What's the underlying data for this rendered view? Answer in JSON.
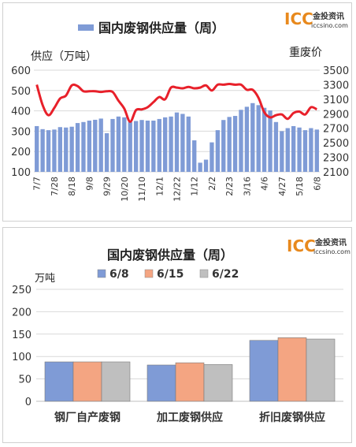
{
  "chart_data": [
    {
      "type": "bar+line",
      "title": "国内废钢供应量（周）",
      "legend": [
        "国内废钢供应量（周）"
      ],
      "ylabel_left": "供应（万吨）",
      "ylabel_right": "重废价",
      "ylim_left": [
        100,
        600
      ],
      "ylim_right": [
        2100,
        3500
      ],
      "yticks_left": [
        "100",
        "200",
        "300",
        "400",
        "500",
        "600"
      ],
      "yticks_right": [
        "2100",
        "2300",
        "2500",
        "2700",
        "2900",
        "3100",
        "3300",
        "3500"
      ],
      "xtick_labels": [
        "7/7",
        "7/28",
        "8/18",
        "9/8",
        "9/29",
        "10/20",
        "11/10",
        "12/1",
        "12/22",
        "1/12",
        "2/2",
        "2/23",
        "3/16",
        "4/6",
        "4/27",
        "5/18",
        "6/8"
      ],
      "bar_color": "#7f9bd6",
      "line_color": "#e8202a",
      "supply": [
        325,
        310,
        305,
        308,
        320,
        318,
        322,
        340,
        345,
        352,
        356,
        362,
        290,
        360,
        372,
        368,
        345,
        350,
        355,
        352,
        352,
        360,
        368,
        372,
        392,
        385,
        372,
        255,
        145,
        160,
        245,
        305,
        355,
        370,
        375,
        405,
        420,
        438,
        428,
        415,
        402,
        345,
        300,
        315,
        325,
        318,
        305,
        315,
        308
      ],
      "heavy_scrap_price": [
        3300,
        3020,
        2880,
        2980,
        3110,
        3150,
        3290,
        3280,
        3210,
        3210,
        3210,
        3200,
        3210,
        3200,
        3080,
        2970,
        2790,
        2950,
        2960,
        2990,
        3060,
        3130,
        3100,
        3260,
        3260,
        3250,
        3270,
        3250,
        3260,
        3290,
        3220,
        3300,
        3300,
        3310,
        3300,
        3300,
        3230,
        3230,
        3120,
        2920,
        2850,
        2880,
        2890,
        2830,
        2910,
        2930,
        2890,
        2990,
        2960
      ]
    },
    {
      "type": "bar",
      "title": "国内废钢供应量（周）",
      "unit": "万吨",
      "categories": [
        "钢厂自产废钢",
        "加工废钢供应",
        "折旧废钢供应"
      ],
      "series": [
        {
          "name": "6/8",
          "color": "#7f9bd6",
          "values": [
            88,
            81,
            136
          ]
        },
        {
          "name": "6/15",
          "color": "#f4a582",
          "values": [
            88,
            86,
            142
          ]
        },
        {
          "name": "6/22",
          "color": "#bfbfbf",
          "values": [
            88,
            82,
            139
          ]
        }
      ],
      "ylim": [
        0,
        250
      ],
      "yticks": [
        "0",
        "50",
        "100",
        "150",
        "200",
        "250"
      ]
    }
  ],
  "logo": {
    "brand": "ICC",
    "cn": "金投资讯",
    "url": "iccsino.com"
  }
}
